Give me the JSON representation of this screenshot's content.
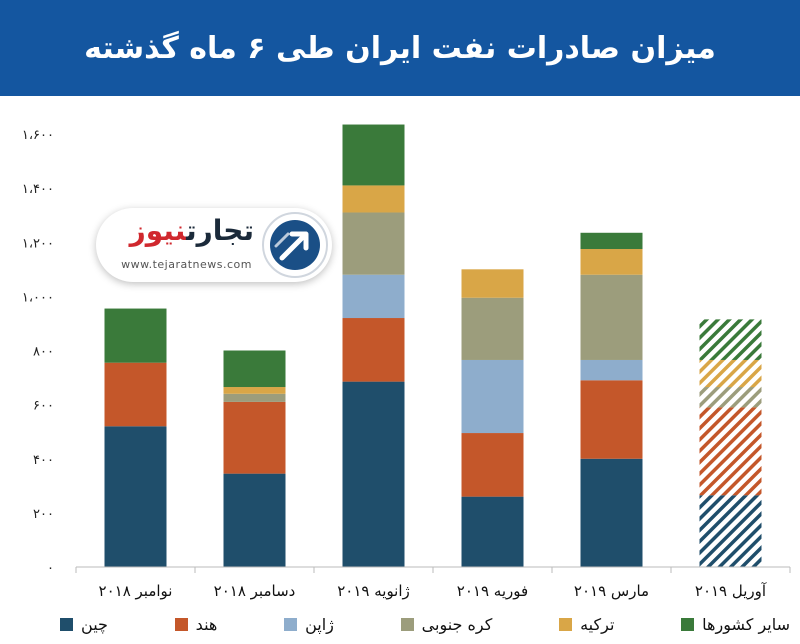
{
  "header": {
    "title": "میزان صادرات نفت ایران طی ۶ ماه گذشته"
  },
  "logo": {
    "name_part1": "تجارت",
    "name_part2": "نیوز",
    "url": "www.tejaratnews.com",
    "icon": "arrow-up-right-icon"
  },
  "colors": {
    "banner": "#1456a0",
    "china": "#1f4e6b",
    "india": "#c4572a",
    "japan": "#8eadcc",
    "korea": "#9c9d7c",
    "turkey": "#d9a647",
    "other": "#3a7a3a"
  },
  "chart_data": {
    "type": "bar",
    "stacked": true,
    "categories": [
      "نوامبر ۲۰۱۸",
      "دسامبر ۲۰۱۸",
      "ژانویه ۲۰۱۹",
      "فوریه ۲۰۱۹",
      "مارس ۲۰۱۹",
      "آوریل ۲۰۱۹"
    ],
    "series": [
      {
        "name": "چین",
        "color": "#1f4e6b",
        "values": [
          520,
          345,
          685,
          260,
          400,
          265
        ]
      },
      {
        "name": "هند",
        "color": "#c4572a",
        "values": [
          235,
          265,
          235,
          235,
          290,
          325
        ]
      },
      {
        "name": "ژاپن",
        "color": "#8eadcc",
        "values": [
          0,
          0,
          160,
          270,
          75,
          0
        ]
      },
      {
        "name": "کره جنوبی",
        "color": "#9c9d7c",
        "values": [
          0,
          30,
          230,
          230,
          315,
          75
        ]
      },
      {
        "name": "ترکیه",
        "color": "#d9a647",
        "values": [
          0,
          25,
          100,
          105,
          95,
          100
        ]
      },
      {
        "name": "سایر کشورها",
        "color": "#3a7a3a",
        "values": [
          200,
          135,
          225,
          0,
          60,
          150
        ]
      }
    ],
    "hatched_categories": [
      "آوریل ۲۰۱۹"
    ],
    "ylim": [
      0,
      1600
    ],
    "yticks": [
      0,
      200,
      400,
      600,
      800,
      1000,
      1200,
      1400,
      1600
    ],
    "ytick_labels": [
      "۰",
      "۲۰۰",
      "۴۰۰",
      "۶۰۰",
      "۸۰۰",
      "۱،۰۰۰",
      "۱،۲۰۰",
      "۱،۴۰۰",
      "۱،۶۰۰"
    ],
    "grid": false,
    "legend_position": "bottom"
  }
}
